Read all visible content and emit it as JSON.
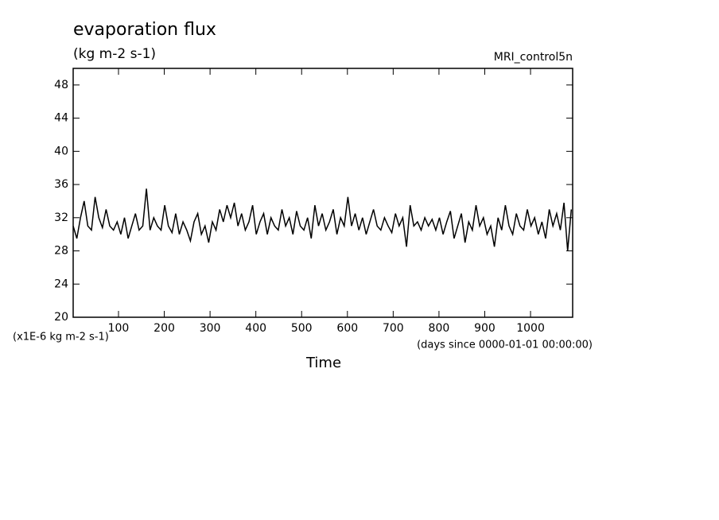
{
  "chart_data": {
    "type": "line",
    "title": "evaporation flux",
    "subtitle": "(kg m-2 s-1)",
    "dataset": "MRI_control5n",
    "y_units": "(x1E-6 kg m-2 s-1)",
    "x_units": "(days since 0000-01-01 00:00:00)",
    "x_label": "Time",
    "x": [
      1,
      9,
      17,
      25,
      33,
      41,
      49,
      57,
      65,
      73,
      81,
      89,
      97,
      105,
      113,
      121,
      129,
      137,
      145,
      153,
      161,
      169,
      177,
      185,
      193,
      201,
      209,
      217,
      225,
      233,
      241,
      249,
      257,
      265,
      273,
      281,
      289,
      297,
      305,
      313,
      321,
      329,
      337,
      345,
      353,
      361,
      369,
      377,
      385,
      393,
      401,
      409,
      417,
      425,
      433,
      441,
      449,
      457,
      465,
      473,
      481,
      489,
      497,
      505,
      513,
      521,
      529,
      537,
      545,
      553,
      561,
      569,
      577,
      585,
      593,
      601,
      609,
      617,
      625,
      633,
      641,
      649,
      657,
      665,
      673,
      681,
      689,
      697,
      705,
      713,
      721,
      729,
      737,
      745,
      753,
      761,
      769,
      777,
      785,
      793,
      801,
      809,
      817,
      825,
      833,
      841,
      849,
      857,
      865,
      873,
      881,
      889,
      897,
      905,
      913,
      921,
      929,
      937,
      945,
      953,
      961,
      969,
      977,
      985,
      993,
      1001,
      1009,
      1017,
      1025,
      1033,
      1041,
      1049,
      1057,
      1065,
      1073,
      1081,
      1089
    ],
    "series": [
      {
        "name": "evaporation flux",
        "color": "#000000",
        "values": [
          31,
          29.5,
          32,
          34,
          31,
          30.5,
          34.5,
          32,
          30.8,
          33,
          31,
          30.5,
          31.5,
          30,
          32,
          29.5,
          31,
          32.5,
          30.5,
          31,
          35.5,
          30.5,
          32,
          31,
          30.5,
          33.5,
          31,
          30.2,
          32.5,
          30,
          31.5,
          30.5,
          29.2,
          31.5,
          32.5,
          30,
          31,
          29,
          31.5,
          30.5,
          33,
          31.5,
          33.5,
          32,
          33.8,
          31,
          32.5,
          30.5,
          31.5,
          33.5,
          30,
          31.5,
          32.5,
          30,
          32,
          31,
          30.5,
          33,
          31,
          32,
          30,
          32.8,
          31,
          30.5,
          32,
          29.5,
          33.5,
          31,
          32.5,
          30.5,
          31.5,
          33,
          30,
          32,
          31,
          34.5,
          31,
          32.5,
          30.5,
          32,
          30,
          31.5,
          33,
          31,
          30.5,
          32,
          31,
          30.2,
          32.5,
          31,
          32,
          28.5,
          33.5,
          31,
          31.5,
          30.5,
          32,
          31,
          31.8,
          30.5,
          32,
          30,
          31.5,
          32.8,
          29.5,
          31,
          32.5,
          29,
          31.5,
          30.5,
          33.5,
          31,
          32,
          30,
          31,
          28.5,
          32,
          30.5,
          33.5,
          31,
          30,
          32.5,
          31,
          30.5,
          33,
          31,
          32,
          30,
          31.5,
          29.5,
          33,
          31,
          32.5,
          30.5,
          33.8,
          28,
          33
        ]
      }
    ],
    "xlim": [
      1,
      1092
    ],
    "ylim": [
      20,
      50
    ],
    "xticks": [
      100,
      200,
      300,
      400,
      500,
      600,
      700,
      800,
      900,
      1000
    ],
    "yticks": [
      20,
      24,
      28,
      32,
      36,
      40,
      44,
      48
    ]
  }
}
